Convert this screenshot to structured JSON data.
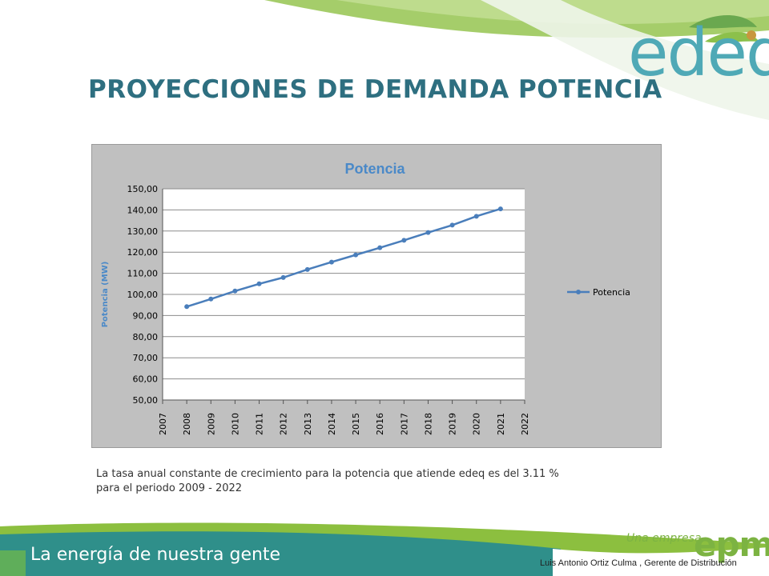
{
  "slide": {
    "title": "PROYECCIONES DE DEMANDA POTENCIA",
    "caption_line1": "La tasa anual constante de crecimiento para la potencia que atiende  edeq es del 3.11 %",
    "caption_line2": "para el periodo 2009 - 2022",
    "brand_logo_text": "edeq",
    "footer_slogan": "La energía de nuestra gente",
    "footer_una_empresa": "Una empresa",
    "footer_epm_logo_text": "epm",
    "footer_author": "Luis Antonio Ortiz Culma , Gerente de Distribución"
  },
  "colors": {
    "title": "#2e6f80",
    "series": "#4a7ebb",
    "chart_title": "#4a89c8",
    "plot_bg": "#ffffff",
    "chart_bg": "#c0c0c0",
    "footer_green": "#8cbf3f",
    "footer_teal": "#2f8f8a",
    "epm_green": "#7cb342"
  },
  "chart_data": {
    "type": "line",
    "title": "Potencia",
    "ylabel": "Potencia (MW)",
    "xlabel": "",
    "categories": [
      "2007",
      "2008",
      "2009",
      "2010",
      "2011",
      "2012",
      "2013",
      "2014",
      "2015",
      "2016",
      "2017",
      "2018",
      "2019",
      "2020",
      "2021",
      "2022"
    ],
    "series": [
      {
        "name": "Potencia",
        "x": [
          "2008",
          "2009",
          "2010",
          "2011",
          "2012",
          "2013",
          "2014",
          "2015",
          "2016",
          "2017",
          "2018",
          "2019",
          "2020",
          "2021"
        ],
        "values": [
          94.2,
          97.8,
          101.6,
          105.0,
          108.0,
          111.8,
          115.3,
          118.7,
          122.1,
          125.6,
          129.3,
          132.8,
          137.0,
          140.5
        ]
      }
    ],
    "ylim": [
      50,
      150
    ],
    "yticks": [
      "50,00",
      "60,00",
      "70,00",
      "80,00",
      "90,00",
      "100,00",
      "110,00",
      "120,00",
      "130,00",
      "140,00",
      "150,00"
    ],
    "grid": true,
    "legend": "right"
  }
}
